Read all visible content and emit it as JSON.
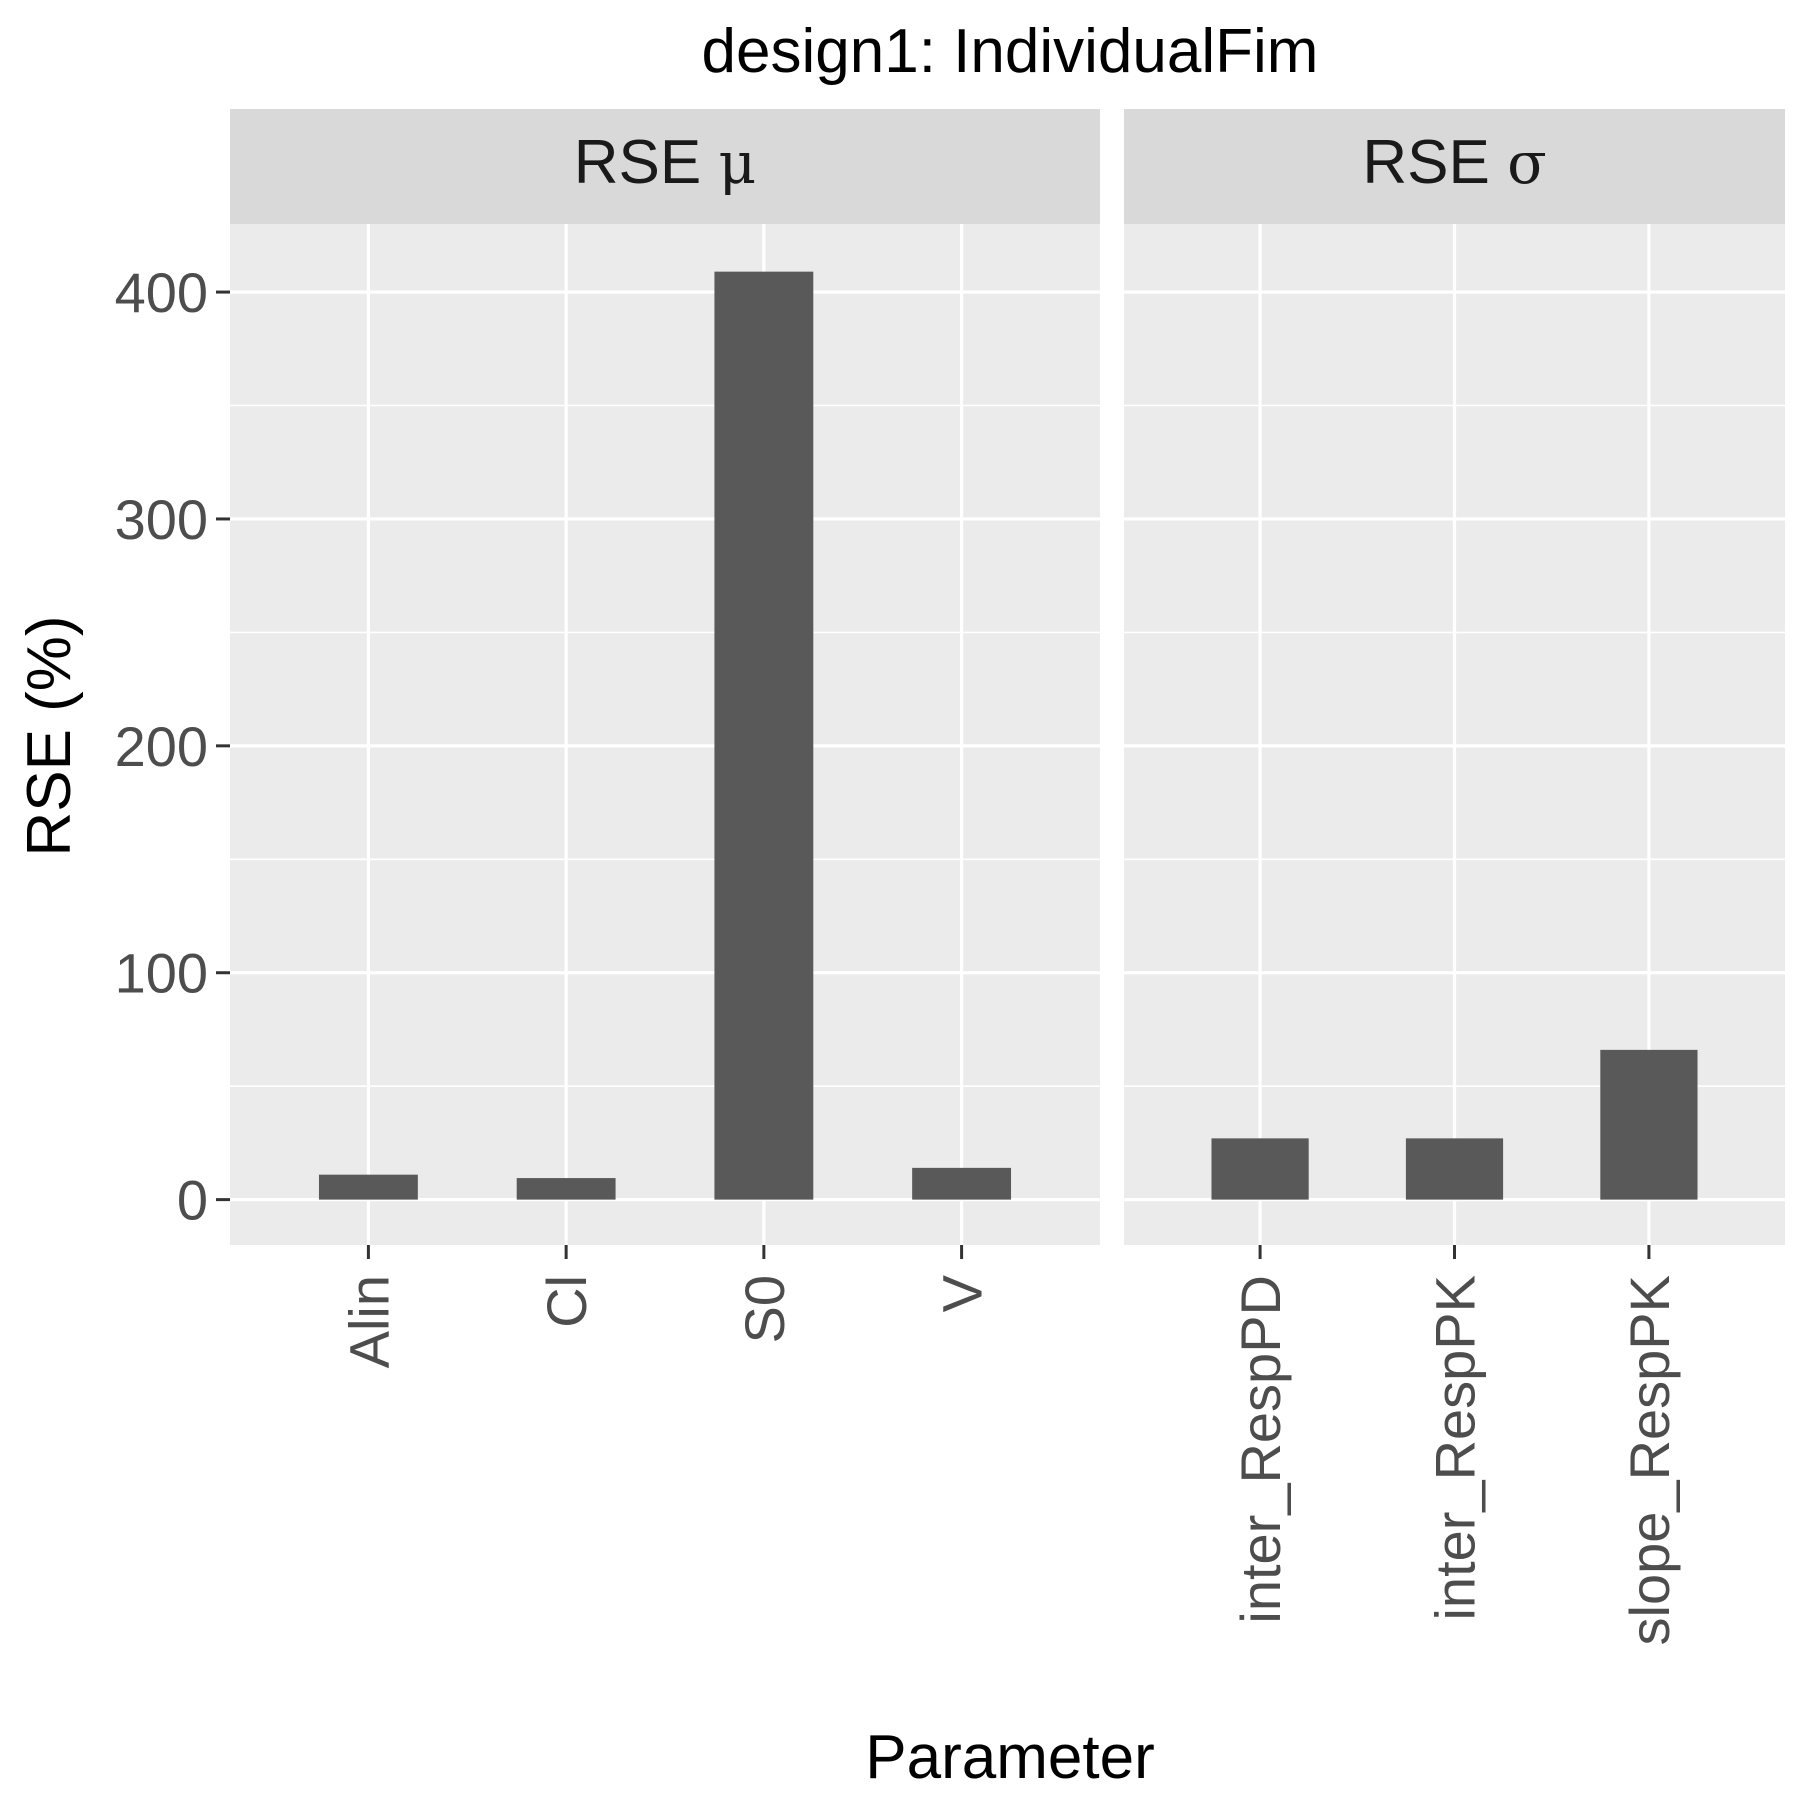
{
  "chart_data": {
    "type": "bar",
    "title": "design1: IndividualFim",
    "xlabel": "Parameter",
    "ylabel": "RSE (%)",
    "ylim": [
      -20,
      430
    ],
    "yticks": [
      0,
      100,
      200,
      300,
      400
    ],
    "grid": true,
    "bar_color": "#595959",
    "panel_bg": "#ebebeb",
    "strip_bg": "#d9d9d9",
    "facets": [
      {
        "strip_label": "RSE",
        "strip_symbol": "μ",
        "categories": [
          "Alin",
          "Cl",
          "S0",
          "V"
        ],
        "values": [
          11,
          9.5,
          409,
          14
        ]
      },
      {
        "strip_label": "RSE",
        "strip_symbol": "σ",
        "categories": [
          "inter_RespPD",
          "inter_RespPK",
          "slope_RespPK"
        ],
        "values": [
          27,
          27,
          66
        ]
      }
    ]
  }
}
